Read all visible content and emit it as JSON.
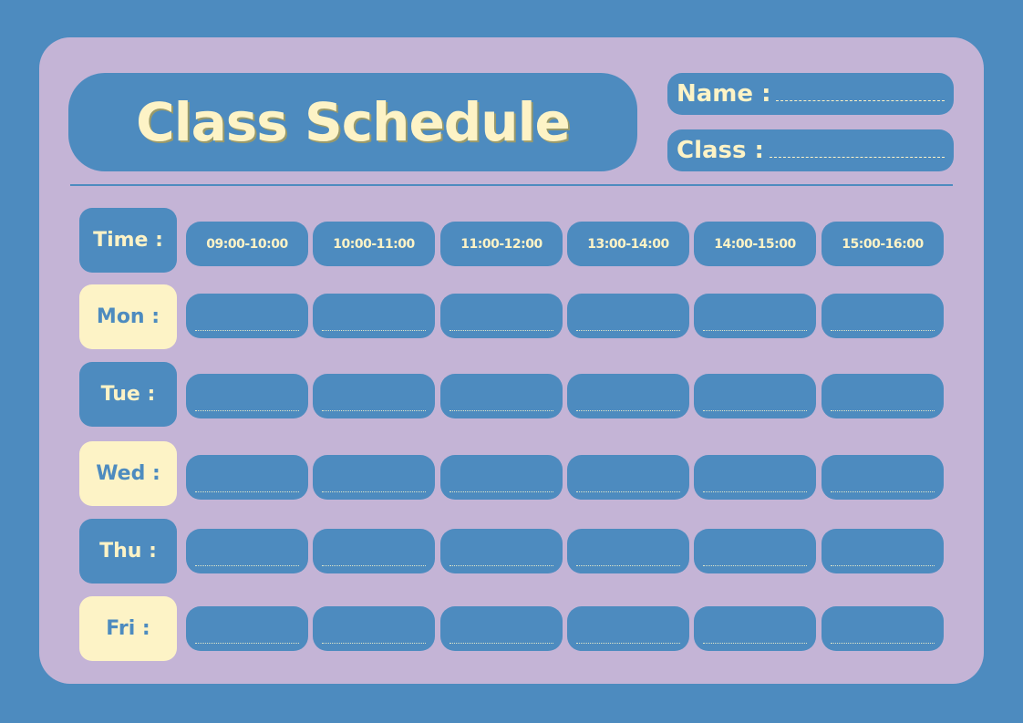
{
  "title": "Class Schedule",
  "fields": {
    "name_label": "Name :",
    "class_label": "Class :"
  },
  "time_label": "Time :",
  "time_slots": [
    "09:00-10:00",
    "10:00-11:00",
    "11:00-12:00",
    "13:00-14:00",
    "14:00-15:00",
    "15:00-16:00"
  ],
  "days": [
    "Mon :",
    "Tue :",
    "Wed :",
    "Thu :",
    "Fri :"
  ],
  "colors": {
    "background": "#4d8bbf",
    "card": "#c4b4d6",
    "accent": "#fdf3c6"
  }
}
